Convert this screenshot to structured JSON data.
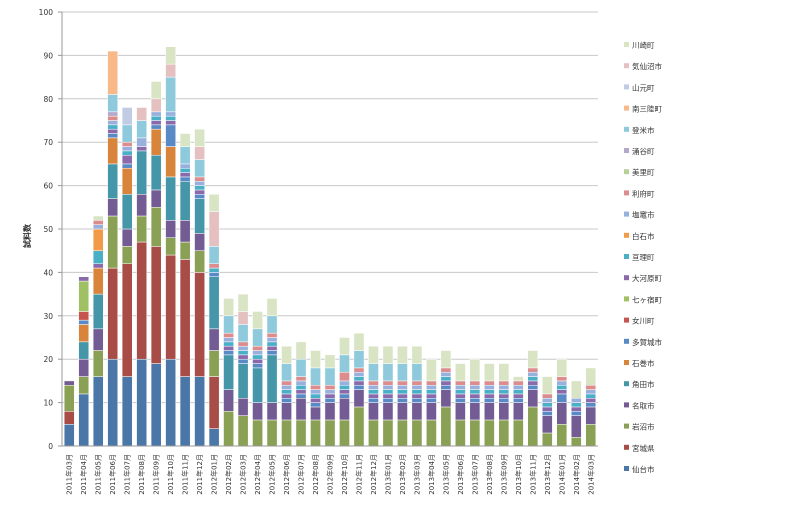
{
  "chart_data": {
    "type": "bar",
    "stacked": true,
    "title": "",
    "xlabel": "",
    "ylabel": "試料数",
    "ylim": [
      0,
      100
    ],
    "yticks": [
      0,
      10,
      20,
      30,
      40,
      50,
      60,
      70,
      80,
      90,
      100
    ],
    "grid": true,
    "legend_position": "right",
    "categories": [
      "2011年03月",
      "2011年04月",
      "2011年05月",
      "2011年06月",
      "2011年07月",
      "2011年08月",
      "2011年09月",
      "2011年10月",
      "2011年11月",
      "2011年12月",
      "2012年01月",
      "2012年02月",
      "2012年03月",
      "2012年04月",
      "2012年05月",
      "2012年06月",
      "2012年07月",
      "2012年08月",
      "2012年09月",
      "2012年10月",
      "2012年11月",
      "2012年12月",
      "2013年01月",
      "2013年02月",
      "2013年03月",
      "2013年04月",
      "2013年05月",
      "2013年06月",
      "2013年07月",
      "2013年08月",
      "2013年09月",
      "2013年10月",
      "2013年11月",
      "2013年12月",
      "2014年01月",
      "2014年02月",
      "2014年03月"
    ],
    "series": [
      {
        "name": "仙台市",
        "color": "#4a76a8"
      },
      {
        "name": "宮城県",
        "color": "#a84c48"
      },
      {
        "name": "岩沼市",
        "color": "#89a055"
      },
      {
        "name": "名取市",
        "color": "#735b94"
      },
      {
        "name": "角田市",
        "color": "#4596a8"
      },
      {
        "name": "石巻市",
        "color": "#d8843a"
      },
      {
        "name": "多賀城市",
        "color": "#5a8ac6"
      },
      {
        "name": "女川町",
        "color": "#c85450"
      },
      {
        "name": "七ヶ宿町",
        "color": "#a0c064"
      },
      {
        "name": "大河原町",
        "color": "#8a6aaa"
      },
      {
        "name": "亘理町",
        "color": "#4ab0c8"
      },
      {
        "name": "白石市",
        "color": "#f09a4a"
      },
      {
        "name": "塩竈市",
        "color": "#98b0dc"
      },
      {
        "name": "利府町",
        "color": "#dc8c8c"
      },
      {
        "name": "美里町",
        "color": "#b8d098"
      },
      {
        "name": "涌谷町",
        "color": "#b4a8cc"
      },
      {
        "name": "登米市",
        "color": "#8ecadc"
      },
      {
        "name": "南三陸町",
        "color": "#f8b888"
      },
      {
        "name": "山元町",
        "color": "#c0cce4"
      },
      {
        "name": "気仙沼市",
        "color": "#e4c0c0"
      },
      {
        "name": "川崎町",
        "color": "#d8e4c4"
      }
    ],
    "values_by_category": [
      [
        5,
        3,
        6,
        1,
        0,
        0,
        0,
        0,
        0,
        0,
        0,
        0,
        0,
        0,
        0,
        0,
        0,
        0,
        0,
        0,
        0
      ],
      [
        12,
        0,
        4,
        4,
        4,
        4,
        1,
        2,
        7,
        1,
        0,
        0,
        0,
        0,
        0,
        0,
        0,
        0,
        0,
        0,
        0
      ],
      [
        16,
        0,
        6,
        5,
        8,
        6,
        0,
        0,
        0,
        1,
        3,
        5,
        1,
        1,
        0,
        0,
        0,
        0,
        0,
        0,
        1
      ],
      [
        20,
        21,
        12,
        4,
        8,
        6,
        1,
        0,
        0,
        1,
        1,
        0,
        1,
        1,
        0,
        1,
        4,
        10,
        0,
        0,
        0
      ],
      [
        16,
        26,
        4,
        4,
        8,
        6,
        1,
        0,
        0,
        2,
        1,
        0,
        1,
        1,
        0,
        0,
        4,
        0,
        4,
        0,
        0
      ],
      [
        20,
        27,
        6,
        5,
        10,
        0,
        0,
        0,
        0,
        1,
        0,
        0,
        2,
        0,
        0,
        0,
        4,
        0,
        0,
        3,
        0
      ],
      [
        19,
        27,
        9,
        4,
        8,
        6,
        1,
        0,
        0,
        1,
        1,
        0,
        1,
        0,
        0,
        0,
        0,
        0,
        0,
        3,
        4
      ],
      [
        20,
        24,
        4,
        4,
        10,
        7,
        5,
        0,
        0,
        1,
        1,
        0,
        1,
        0,
        0,
        0,
        8,
        0,
        0,
        3,
        4
      ],
      [
        16,
        27,
        4,
        5,
        9,
        0,
        1,
        0,
        0,
        1,
        1,
        0,
        1,
        0,
        0,
        0,
        4,
        0,
        0,
        0,
        3
      ],
      [
        16,
        24,
        5,
        4,
        8,
        0,
        1,
        0,
        0,
        1,
        1,
        0,
        1,
        1,
        0,
        0,
        4,
        0,
        0,
        3,
        4
      ],
      [
        4,
        12,
        6,
        5,
        12,
        0,
        1,
        0,
        0,
        0,
        1,
        0,
        0,
        1,
        0,
        0,
        4,
        0,
        0,
        8,
        4
      ],
      [
        0,
        0,
        8,
        5,
        8,
        0,
        1,
        0,
        0,
        1,
        1,
        0,
        1,
        1,
        0,
        0,
        4,
        0,
        0,
        0,
        4
      ],
      [
        0,
        0,
        7,
        4,
        8,
        0,
        1,
        0,
        0,
        1,
        1,
        0,
        1,
        1,
        0,
        0,
        4,
        0,
        0,
        3,
        4
      ],
      [
        0,
        0,
        6,
        4,
        8,
        0,
        1,
        0,
        0,
        1,
        1,
        0,
        1,
        1,
        0,
        0,
        4,
        0,
        0,
        0,
        4
      ],
      [
        0,
        0,
        6,
        4,
        11,
        0,
        1,
        0,
        0,
        1,
        1,
        0,
        1,
        1,
        0,
        0,
        4,
        0,
        0,
        0,
        4
      ],
      [
        0,
        0,
        6,
        4,
        0,
        0,
        1,
        0,
        0,
        1,
        1,
        0,
        1,
        1,
        0,
        0,
        4,
        0,
        0,
        0,
        4
      ],
      [
        0,
        0,
        6,
        5,
        0,
        0,
        1,
        0,
        0,
        1,
        1,
        0,
        1,
        1,
        0,
        0,
        4,
        0,
        0,
        0,
        4
      ],
      [
        0,
        0,
        6,
        3,
        0,
        0,
        1,
        0,
        0,
        1,
        1,
        0,
        1,
        1,
        0,
        0,
        4,
        0,
        0,
        0,
        4
      ],
      [
        0,
        0,
        6,
        4,
        0,
        0,
        1,
        0,
        0,
        1,
        0,
        0,
        1,
        1,
        0,
        0,
        4,
        0,
        0,
        0,
        3
      ],
      [
        0,
        0,
        6,
        5,
        0,
        0,
        1,
        0,
        0,
        1,
        1,
        0,
        1,
        2,
        0,
        0,
        4,
        0,
        0,
        0,
        4
      ],
      [
        0,
        0,
        9,
        4,
        0,
        0,
        1,
        0,
        0,
        1,
        1,
        0,
        1,
        1,
        0,
        0,
        4,
        0,
        0,
        0,
        4
      ],
      [
        0,
        0,
        6,
        4,
        0,
        0,
        1,
        0,
        0,
        1,
        1,
        0,
        1,
        1,
        0,
        0,
        4,
        0,
        0,
        0,
        4
      ],
      [
        0,
        0,
        6,
        4,
        0,
        0,
        1,
        0,
        0,
        1,
        1,
        0,
        1,
        1,
        0,
        0,
        4,
        0,
        0,
        0,
        4
      ],
      [
        0,
        0,
        6,
        4,
        0,
        0,
        1,
        0,
        0,
        1,
        1,
        0,
        1,
        1,
        0,
        0,
        4,
        0,
        0,
        0,
        4
      ],
      [
        0,
        0,
        6,
        4,
        0,
        0,
        1,
        0,
        0,
        1,
        1,
        0,
        1,
        1,
        0,
        0,
        4,
        0,
        0,
        0,
        4
      ],
      [
        0,
        0,
        6,
        4,
        0,
        0,
        1,
        0,
        0,
        1,
        1,
        0,
        1,
        1,
        0,
        0,
        0,
        0,
        0,
        0,
        5
      ],
      [
        0,
        0,
        9,
        4,
        0,
        0,
        1,
        0,
        0,
        1,
        1,
        0,
        1,
        1,
        0,
        0,
        0,
        0,
        0,
        0,
        4
      ],
      [
        0,
        0,
        6,
        4,
        0,
        0,
        1,
        0,
        0,
        1,
        1,
        0,
        1,
        1,
        0,
        0,
        0,
        0,
        0,
        0,
        4
      ],
      [
        0,
        0,
        6,
        4,
        0,
        0,
        1,
        0,
        0,
        1,
        1,
        0,
        1,
        1,
        0,
        0,
        0,
        0,
        0,
        0,
        5
      ],
      [
        0,
        0,
        6,
        4,
        0,
        0,
        1,
        0,
        0,
        1,
        1,
        0,
        1,
        1,
        0,
        0,
        0,
        0,
        0,
        0,
        4
      ],
      [
        0,
        0,
        6,
        4,
        0,
        0,
        1,
        0,
        0,
        1,
        1,
        0,
        1,
        1,
        0,
        0,
        0,
        0,
        0,
        0,
        4
      ],
      [
        0,
        0,
        6,
        4,
        0,
        0,
        1,
        0,
        0,
        1,
        1,
        0,
        1,
        1,
        0,
        0,
        0,
        0,
        0,
        0,
        1
      ],
      [
        0,
        0,
        9,
        4,
        0,
        0,
        1,
        0,
        0,
        1,
        1,
        0,
        1,
        1,
        0,
        0,
        0,
        0,
        0,
        0,
        4
      ],
      [
        0,
        0,
        3,
        4,
        0,
        0,
        1,
        0,
        0,
        1,
        1,
        0,
        1,
        1,
        0,
        0,
        0,
        0,
        0,
        0,
        4
      ],
      [
        0,
        0,
        5,
        5,
        0,
        0,
        2,
        0,
        0,
        1,
        1,
        0,
        1,
        1,
        0,
        0,
        0,
        0,
        0,
        0,
        4
      ],
      [
        0,
        0,
        2,
        5,
        0,
        0,
        1,
        0,
        0,
        1,
        1,
        0,
        1,
        0,
        0,
        0,
        0,
        0,
        0,
        0,
        4
      ],
      [
        0,
        0,
        5,
        4,
        0,
        0,
        1,
        0,
        0,
        1,
        1,
        0,
        1,
        1,
        0,
        0,
        0,
        0,
        0,
        0,
        4
      ]
    ]
  }
}
